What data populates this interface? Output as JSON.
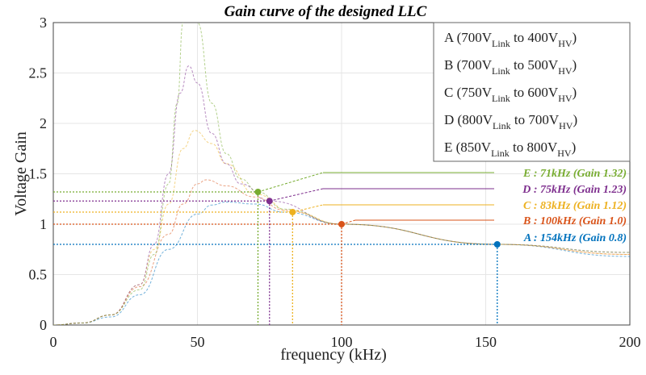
{
  "chart_data": {
    "type": "line",
    "title": "Gain curve of the designed LLC",
    "xlabel": "frequency (kHz)",
    "ylabel": "Voltage Gain",
    "xlim": [
      0,
      200
    ],
    "ylim": [
      0,
      3
    ],
    "xticks": [
      0,
      50,
      100,
      150,
      200
    ],
    "yticks": [
      0,
      0.5,
      1,
      1.5,
      2,
      2.5,
      3
    ],
    "ytick_labels": [
      "0",
      "0.5",
      "1",
      "1.5",
      "2",
      "2.5",
      "3"
    ],
    "grid": true,
    "legend_position": "top-right",
    "series": [
      {
        "name": "A (700V_Link to 400V_HV)",
        "legend": {
          "p1": "A (700V",
          "s1": "Link",
          "p2": " to 400V",
          "s2": "HV",
          "p3": ")"
        },
        "color": "#0072bd",
        "x": [
          0,
          10,
          20,
          30,
          40,
          50,
          55,
          60,
          70,
          80,
          100,
          154,
          200
        ],
        "y": [
          0,
          0.02,
          0.08,
          0.3,
          0.75,
          1.1,
          1.19,
          1.22,
          1.2,
          1.12,
          1.0,
          0.8,
          0.68
        ]
      },
      {
        "name": "B (700V_Link to 500V_HV)",
        "legend": {
          "p1": "B (700V",
          "s1": "Link",
          "p2": " to 500V",
          "s2": "HV",
          "p3": ")"
        },
        "color": "#d95319",
        "x": [
          0,
          10,
          20,
          30,
          40,
          45,
          50,
          53,
          60,
          70,
          80,
          100,
          154,
          200
        ],
        "y": [
          0,
          0.02,
          0.1,
          0.38,
          0.9,
          1.2,
          1.4,
          1.44,
          1.38,
          1.27,
          1.14,
          1.0,
          0.8,
          0.7
        ]
      },
      {
        "name": "C (750V_Link to 600V_HV)",
        "legend": {
          "p1": "C (750V",
          "s1": "Link",
          "p2": " to 600V",
          "s2": "HV",
          "p3": ")"
        },
        "color": "#edb120",
        "x": [
          0,
          10,
          20,
          30,
          35,
          40,
          45,
          49,
          55,
          60,
          70,
          83,
          100,
          154,
          200
        ],
        "y": [
          0,
          0.02,
          0.1,
          0.4,
          0.75,
          1.2,
          1.75,
          1.93,
          1.8,
          1.6,
          1.3,
          1.12,
          1.0,
          0.8,
          0.7
        ]
      },
      {
        "name": "D (800V_Link to 700V_HV)",
        "legend": {
          "p1": "D (800V",
          "s1": "Link",
          "p2": " to 700V",
          "s2": "HV",
          "p3": ")"
        },
        "color": "#7e2f8e",
        "x": [
          0,
          10,
          20,
          30,
          35,
          40,
          44,
          47,
          50,
          55,
          60,
          65,
          75,
          100,
          154,
          200
        ],
        "y": [
          0,
          0.02,
          0.1,
          0.4,
          0.8,
          1.5,
          2.3,
          2.57,
          2.4,
          1.9,
          1.6,
          1.4,
          1.23,
          1.0,
          0.8,
          0.72
        ]
      },
      {
        "name": "E (850V_Link to 800V_HV)",
        "legend": {
          "p1": "E (850V",
          "s1": "Link",
          "p2": " to 800V",
          "s2": "HV",
          "p3": ")"
        },
        "color": "#77ac30",
        "x": [
          0,
          10,
          20,
          30,
          35,
          40,
          43,
          45,
          47,
          50,
          55,
          60,
          65,
          71,
          80,
          100,
          154,
          200
        ],
        "y": [
          0,
          0.02,
          0.1,
          0.35,
          0.7,
          1.4,
          2.2,
          3.0,
          3.5,
          3.0,
          2.2,
          1.7,
          1.45,
          1.32,
          1.15,
          1.0,
          0.8,
          0.72
        ]
      }
    ],
    "annotations": [
      {
        "series": "A",
        "text": "A : 154kHz (Gain 0.8)",
        "x": 154,
        "y": 0.8,
        "color": "#0072bd"
      },
      {
        "series": "B",
        "text": "B : 100kHz (Gain 1.0)",
        "x": 100,
        "y": 1.0,
        "color": "#d95319"
      },
      {
        "series": "C",
        "text": "C : 83kHz (Gain 1.12)",
        "x": 83,
        "y": 1.12,
        "color": "#edb120"
      },
      {
        "series": "D",
        "text": "D : 75kHz (Gain 1.23)",
        "x": 75,
        "y": 1.23,
        "color": "#7e2f8e"
      },
      {
        "series": "E",
        "text": "E : 71kHz (Gain 1.32)",
        "x": 71,
        "y": 1.32,
        "color": "#77ac30"
      }
    ]
  }
}
